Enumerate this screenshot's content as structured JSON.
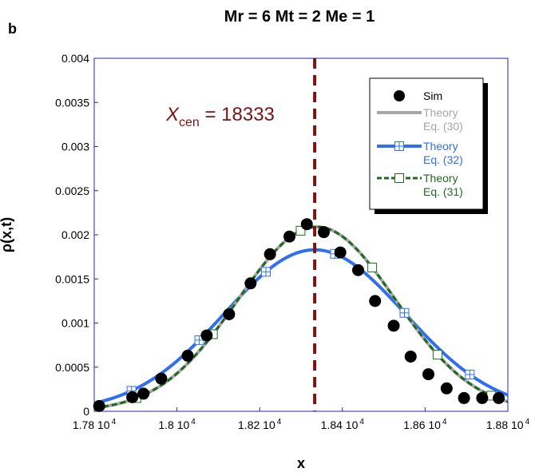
{
  "panel_label": "b",
  "chart_data": {
    "type": "line",
    "title": "Mr = 6 Mt = 2 Me = 1",
    "xlabel": "x",
    "ylabel": "ρ(x,t)",
    "xlim": [
      17800,
      18800
    ],
    "ylim": [
      0,
      0.004
    ],
    "x_ticks": [
      {
        "value": 17800,
        "mantissa": "1.78 10",
        "exp": "4"
      },
      {
        "value": 18000,
        "mantissa": "1.8 10",
        "exp": "4"
      },
      {
        "value": 18200,
        "mantissa": "1.82 10",
        "exp": "4"
      },
      {
        "value": 18400,
        "mantissa": "1.84 10",
        "exp": "4"
      },
      {
        "value": 18600,
        "mantissa": "1.86 10",
        "exp": "4"
      },
      {
        "value": 18800,
        "mantissa": "1.88 10",
        "exp": "4"
      }
    ],
    "y_ticks": [
      {
        "value": 0,
        "label": "0"
      },
      {
        "value": 0.0005,
        "label": "0.0005"
      },
      {
        "value": 0.001,
        "label": "0.001"
      },
      {
        "value": 0.0015,
        "label": "0.0015"
      },
      {
        "value": 0.002,
        "label": "0.002"
      },
      {
        "value": 0.0025,
        "label": "0.0025"
      },
      {
        "value": 0.003,
        "label": "0.003"
      },
      {
        "value": 0.0035,
        "label": "0.0035"
      },
      {
        "value": 0.004,
        "label": "0.004"
      }
    ],
    "grid": false,
    "legend_position": "top-right",
    "annotation": {
      "prefix": "X",
      "subscript": "cen",
      "suffix": " = 18333",
      "x": 18333
    },
    "series": [
      {
        "name": "Sim",
        "kind": "markers",
        "color": "#000000",
        "x": [
          17812,
          17892,
          17919,
          17962,
          18026,
          18072,
          18126,
          18178,
          18225,
          18272,
          18314,
          18355,
          18395,
          18438,
          18479,
          18524,
          18565,
          18608,
          18652,
          18694,
          18738,
          18778
        ],
        "y": [
          6e-05,
          0.00016,
          0.0002,
          0.00037,
          0.00063,
          0.00086,
          0.0011,
          0.00145,
          0.00178,
          0.00198,
          0.00212,
          0.00203,
          0.0018,
          0.0016,
          0.00125,
          0.00097,
          0.00062,
          0.00042,
          0.00026,
          0.00015,
          0.00015,
          0.00015
        ]
      },
      {
        "name": "Theory",
        "name_line2": "Eq. (30)",
        "kind": "line",
        "color": "#a6a6a6",
        "center": 18338,
        "peak": 0.00209,
        "sigma": 190
      },
      {
        "name": "Theory",
        "name_line2": "Eq. (32)",
        "kind": "line-markers",
        "color": "#2f6ff0",
        "center": 18333,
        "peak": 0.00183,
        "sigma": 218,
        "marker_x": [
          17890,
          18054,
          18215,
          18382,
          18550,
          18708
        ]
      },
      {
        "name": "Theory",
        "name_line2": "Eq. (31)",
        "kind": "dashed-markers",
        "color": "#1e6b1e",
        "center": 18338,
        "peak": 0.00209,
        "sigma": 190,
        "marker_x": [
          17902,
          18087,
          18299,
          18472,
          18630,
          18760
        ]
      }
    ]
  }
}
